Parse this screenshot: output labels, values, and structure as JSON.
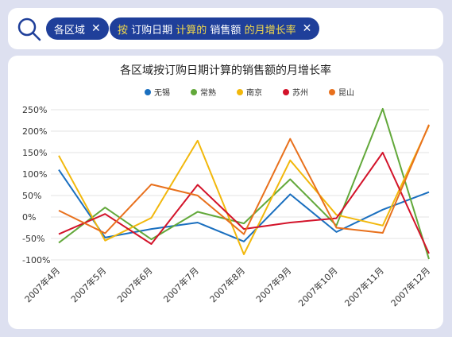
{
  "search_chips": [
    {
      "parts": [
        {
          "text": "各区域",
          "highlight": false
        }
      ]
    },
    {
      "parts": [
        {
          "text": "按",
          "highlight": true
        },
        {
          "text": " 订购日期 ",
          "highlight": false
        },
        {
          "text": "计算的",
          "highlight": true
        },
        {
          "text": " 销售额 ",
          "highlight": false
        },
        {
          "text": "的月增长率",
          "highlight": true
        }
      ]
    }
  ],
  "colors": {
    "chip_bg": "#1f3f9a",
    "chip_highlight": "#f2d94b",
    "grid": "#e3e3e3"
  },
  "chart_data": {
    "type": "line",
    "title": "各区域按订购日期计算的销售额的月增长率",
    "legend_position": "top",
    "grid": true,
    "categories": [
      "2007年4月",
      "2007年5月",
      "2007年6月",
      "2007年7月",
      "2007年8月",
      "2007年9月",
      "2007年10月",
      "2007年11月",
      "2007年12月"
    ],
    "ylim": [
      -100,
      250
    ],
    "yticks": [
      250,
      200,
      150,
      100,
      50,
      0,
      -50,
      -100
    ],
    "ytick_labels": [
      "250%",
      "200%",
      "150%",
      "100%",
      "50%",
      "0%",
      "-50%",
      "-100%"
    ],
    "series": [
      {
        "name": "无锡",
        "color": "#1a6fbf",
        "values": [
          110,
          -48,
          -28,
          -13,
          -57,
          53,
          -35,
          17,
          58
        ]
      },
      {
        "name": "常熟",
        "color": "#62a83a",
        "values": [
          -60,
          22,
          -52,
          12,
          -15,
          88,
          -20,
          252,
          -98
        ]
      },
      {
        "name": "南京",
        "color": "#f2b80c",
        "values": [
          143,
          -55,
          -2,
          178,
          -87,
          132,
          5,
          -20,
          213
        ]
      },
      {
        "name": "苏州",
        "color": "#d3132a",
        "values": [
          -40,
          7,
          -63,
          75,
          -28,
          -13,
          -3,
          150,
          -85
        ]
      },
      {
        "name": "昆山",
        "color": "#e8701c",
        "values": [
          15,
          -38,
          76,
          50,
          -40,
          182,
          -25,
          -37,
          215
        ]
      }
    ]
  }
}
